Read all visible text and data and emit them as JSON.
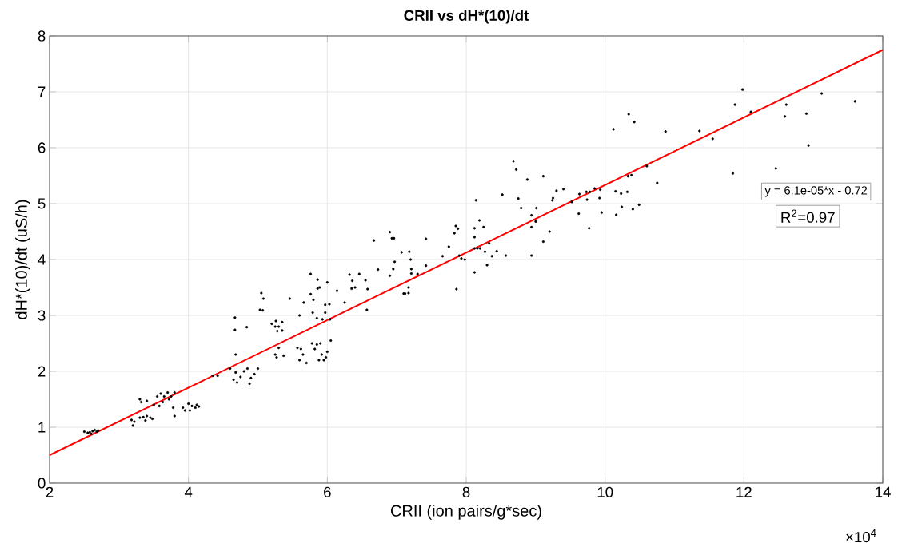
{
  "chart_data": {
    "type": "scatter",
    "title": "CRII vs dH*(10)/dt",
    "xlabel": "CRII (ion pairs/g*sec)",
    "ylabel": "dH*(10)/dt (uS/h)",
    "annotations": [
      "y = 6.1e-05*x - 0.72",
      "R$^{2}$=0.97",
      "×10$^{4}$"
    ],
    "xlim": [
      2,
      14
    ],
    "ylim": [
      0,
      8
    ],
    "xticks": [
      2,
      4,
      6,
      8,
      10,
      12,
      14
    ],
    "yticks": [
      0,
      1,
      2,
      3,
      4,
      5,
      6,
      7,
      8
    ],
    "grid": true,
    "series": [
      {
        "color": "#000000",
        "marker": "circle",
        "x": [
          2.5,
          2.55,
          2.58,
          2.6,
          2.62,
          2.65,
          2.68,
          2.7,
          3.18,
          3.2,
          3.22,
          3.3,
          3.35,
          3.38,
          3.4,
          3.45,
          3.48,
          3.3,
          3.32,
          3.4,
          3.5,
          3.55,
          3.58,
          3.6,
          3.63,
          3.65,
          3.7,
          3.72,
          3.75,
          3.78,
          3.8,
          3.8,
          3.92,
          3.95,
          4.0,
          4.02,
          4.05,
          4.1,
          4.12,
          4.15,
          4.35,
          4.42,
          4.6,
          4.65,
          4.68,
          4.7,
          4.75,
          4.8,
          4.85,
          4.88,
          4.9,
          4.95,
          5.0,
          4.67,
          4.67,
          4.84,
          4.68,
          5.03,
          5.05,
          5.08,
          5.07,
          5.26,
          5.3,
          5.35,
          5.27,
          5.2,
          5.25,
          5.28,
          5.35,
          5.3,
          5.25,
          5.37,
          5.46,
          5.57,
          5.6,
          5.65,
          5.7,
          5.62,
          5.6,
          5.66,
          5.76,
          5.76,
          5.79,
          5.8,
          5.86,
          5.86,
          5.89,
          5.85,
          5.78,
          5.82,
          5.85,
          5.9,
          5.92,
          5.95,
          5.98,
          6.0,
          5.88,
          5.93,
          5.97,
          5.97,
          6.0,
          6.03,
          6.04,
          6.05,
          6.14,
          6.25,
          6.32,
          6.36,
          6.35,
          6.4,
          6.46,
          6.55,
          6.57,
          6.58,
          6.67,
          6.73,
          6.9,
          6.93,
          6.96,
          6.97,
          6.95,
          6.9,
          7.07,
          7.18,
          7.2,
          7.21,
          7.21,
          7.17,
          7.1,
          7.12,
          7.17,
          7.3,
          7.42,
          7.42,
          7.66,
          7.75,
          7.85,
          7.88,
          7.83,
          7.9,
          7.93,
          7.86,
          7.98,
          8.12,
          8.19,
          8.25,
          8.12,
          8.12,
          8.16,
          8.2,
          8.27,
          8.44,
          8.12,
          8.3,
          8.37,
          8.57,
          8.33,
          8.14,
          8.52,
          8.68,
          8.72,
          8.75,
          8.79,
          8.88,
          8.94,
          8.94,
          9.0,
          9.01,
          8.94,
          9.11,
          9.11,
          9.2,
          9.24,
          9.25,
          9.3,
          9.4,
          9.52,
          9.62,
          9.63,
          9.73,
          9.74,
          9.77,
          9.78,
          9.85,
          9.92,
          9.93,
          9.95,
          10.15,
          10.16,
          10.23,
          10.24,
          10.32,
          10.33,
          10.38,
          10.4,
          10.49,
          10.6,
          10.75,
          10.12,
          10.34,
          10.42,
          10.87,
          11.36,
          11.55,
          11.84,
          11.87,
          11.98,
          12.1,
          12.46,
          12.59,
          12.61,
          12.9,
          12.93,
          13.12,
          13.6
        ],
        "values": [
          0.92,
          0.9,
          0.91,
          0.88,
          0.93,
          0.95,
          0.92,
          0.94,
          1.13,
          1.03,
          1.1,
          1.17,
          1.18,
          1.12,
          1.2,
          1.17,
          1.15,
          1.5,
          1.45,
          1.47,
          1.4,
          1.55,
          1.38,
          1.6,
          1.45,
          1.55,
          1.62,
          1.5,
          1.55,
          1.35,
          1.2,
          1.62,
          1.35,
          1.3,
          1.42,
          1.3,
          1.38,
          1.35,
          1.4,
          1.37,
          1.92,
          1.92,
          2.05,
          1.85,
          1.98,
          1.8,
          1.9,
          2.0,
          2.05,
          1.78,
          1.88,
          1.95,
          2.05,
          2.74,
          2.96,
          2.79,
          2.3,
          3.1,
          3.4,
          3.3,
          3.09,
          2.9,
          2.8,
          2.73,
          2.25,
          2.85,
          2.8,
          2.72,
          2.88,
          2.42,
          2.3,
          2.28,
          3.3,
          2.42,
          2.2,
          2.3,
          2.15,
          2.4,
          3.0,
          3.23,
          3.74,
          3.38,
          3.05,
          3.28,
          3.64,
          3.48,
          3.5,
          2.95,
          2.5,
          2.4,
          2.48,
          2.5,
          2.3,
          2.2,
          2.25,
          2.35,
          2.2,
          2.93,
          3.19,
          3.05,
          3.59,
          3.2,
          2.93,
          2.55,
          3.44,
          3.23,
          3.73,
          3.62,
          3.48,
          3.5,
          3.74,
          3.63,
          3.1,
          3.47,
          4.34,
          3.82,
          4.49,
          4.38,
          4.38,
          3.96,
          3.83,
          3.71,
          4.13,
          4.14,
          4.0,
          3.83,
          3.75,
          3.5,
          3.39,
          3.39,
          3.4,
          3.74,
          4.37,
          3.89,
          4.06,
          4.23,
          4.6,
          4.55,
          4.47,
          4.07,
          4.02,
          3.47,
          4.0,
          4.56,
          4.7,
          4.58,
          4.4,
          4.2,
          4.2,
          4.2,
          4.14,
          4.15,
          3.77,
          3.9,
          4.06,
          4.07,
          4.29,
          5.06,
          5.16,
          5.76,
          5.61,
          5.09,
          4.92,
          5.43,
          4.79,
          4.58,
          4.68,
          4.92,
          4.07,
          4.32,
          5.49,
          4.5,
          5.06,
          5.1,
          5.23,
          5.26,
          5.03,
          4.82,
          5.17,
          5.21,
          5.07,
          4.56,
          5.21,
          5.27,
          5.1,
          5.25,
          4.84,
          5.22,
          4.8,
          5.18,
          4.94,
          5.21,
          5.49,
          5.51,
          4.9,
          4.98,
          5.67,
          5.37,
          6.33,
          6.6,
          6.46,
          6.29,
          6.3,
          6.16,
          5.54,
          6.77,
          7.04,
          6.64,
          5.63,
          6.56,
          6.77,
          6.61,
          6.04,
          6.97,
          6.83
        ]
      },
      {
        "type": "line",
        "color": "#ff0000",
        "marker": "none",
        "x": [
          2,
          14
        ],
        "values": [
          0.5,
          7.75
        ]
      }
    ]
  }
}
